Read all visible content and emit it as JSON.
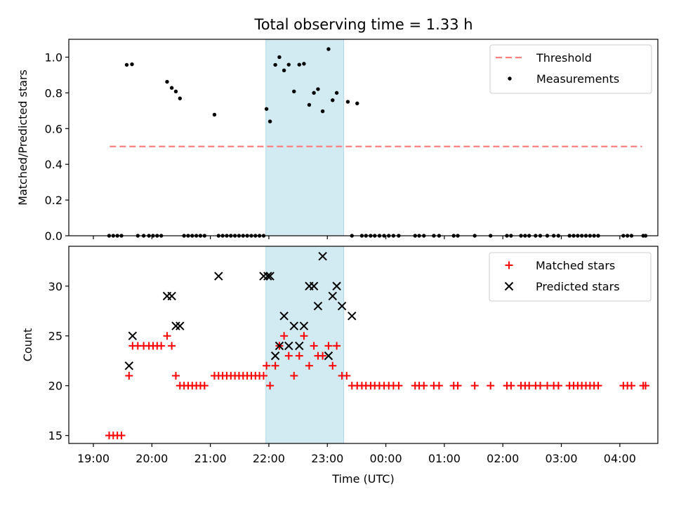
{
  "title": "Total observing time = 1.33 h",
  "colors": {
    "threshold": "#ff7f7f",
    "measurement": "#000000",
    "matched": "#ff0000",
    "predicted": "#000000",
    "shaded_region": "#add8e6"
  },
  "chart_data": [
    {
      "type": "scatter",
      "panel": "top",
      "title": "Total observing time = 1.33 h",
      "xlabel": "",
      "ylabel": "Matched/Predicted stars",
      "x_unit": "hours after 19:00 UTC",
      "xlim": [
        -0.42,
        9.65
      ],
      "ylim": [
        0.0,
        1.1
      ],
      "yticks": [
        0.0,
        0.2,
        0.4,
        0.6,
        0.8,
        1.0
      ],
      "ytick_labels": [
        "0.0",
        "0.2",
        "0.4",
        "0.6",
        "0.8",
        "1.0"
      ],
      "legend": {
        "position": "top-right",
        "entries": [
          "Threshold",
          "Measurements"
        ]
      },
      "shaded_region": {
        "x": [
          2.95,
          4.28
        ]
      },
      "threshold": {
        "name": "Threshold",
        "x": [
          0.28,
          9.38
        ],
        "y": 0.5,
        "style": "dashed"
      },
      "series": [
        {
          "name": "Measurements",
          "x": [
            0.27,
            0.34,
            0.41,
            0.48,
            0.57,
            0.66,
            0.76,
            0.86,
            0.95,
            1.02,
            1.09,
            1.16,
            1.26,
            1.34,
            1.41,
            1.48,
            1.55,
            1.62,
            1.69,
            1.76,
            1.83,
            1.9,
            2.07,
            2.14,
            2.21,
            2.28,
            2.35,
            2.42,
            2.49,
            2.56,
            2.63,
            2.7,
            2.77,
            2.84,
            2.91,
            2.96,
            3.02,
            3.11,
            3.18,
            3.26,
            3.34,
            3.43,
            3.52,
            3.6,
            3.69,
            3.77,
            3.84,
            3.92,
            4.02,
            4.09,
            4.16,
            4.35,
            4.42,
            4.51,
            4.59,
            4.66,
            4.74,
            4.81,
            4.89,
            4.97,
            5.05,
            5.13,
            5.22,
            5.5,
            5.57,
            5.65,
            5.82,
            5.91,
            6.16,
            6.23,
            6.52,
            6.79,
            7.07,
            7.14,
            7.31,
            7.38,
            7.45,
            7.56,
            7.64,
            7.76,
            7.87,
            7.95,
            8.14,
            8.21,
            8.28,
            8.35,
            8.42,
            8.49,
            8.56,
            8.63,
            9.06,
            9.13,
            9.2,
            9.4,
            9.44
          ],
          "y": [
            0.0,
            0.0,
            0.0,
            0.0,
            0.957,
            0.96,
            0.0,
            0.0,
            0.0,
            0.0,
            0.0,
            0.0,
            0.862,
            0.828,
            0.808,
            0.769,
            0.0,
            0.0,
            0.0,
            0.0,
            0.0,
            0.0,
            0.678,
            0.0,
            0.0,
            0.0,
            0.0,
            0.0,
            0.0,
            0.0,
            0.0,
            0.0,
            0.0,
            0.0,
            0.0,
            0.71,
            0.64,
            0.957,
            1.0,
            0.926,
            0.958,
            0.808,
            0.958,
            0.963,
            0.733,
            0.8,
            0.821,
            0.697,
            1.045,
            0.759,
            0.8,
            0.75,
            0.0,
            0.741,
            0.0,
            0.0,
            0.0,
            0.0,
            0.0,
            0.0,
            0.0,
            0.0,
            0.0,
            0.0,
            0.0,
            0.0,
            0.0,
            0.0,
            0.0,
            0.0,
            0.0,
            0.0,
            0.0,
            0.0,
            0.0,
            0.0,
            0.0,
            0.0,
            0.0,
            0.0,
            0.0,
            0.0,
            0.0,
            0.0,
            0.0,
            0.0,
            0.0,
            0.0,
            0.0,
            0.0,
            0.0,
            0.0,
            0.0,
            0.0,
            0.0
          ]
        }
      ]
    },
    {
      "type": "scatter",
      "panel": "bottom",
      "xlabel": "Time (UTC)",
      "ylabel": "Count",
      "x_unit": "hours after 19:00 UTC",
      "xlim": [
        -0.42,
        9.65
      ],
      "ylim": [
        14.2,
        34.0
      ],
      "xticks": [
        0,
        1,
        2,
        3,
        4,
        5,
        6,
        7,
        8,
        9
      ],
      "xtick_labels": [
        "19:00",
        "20:00",
        "21:00",
        "22:00",
        "23:00",
        "00:00",
        "01:00",
        "02:00",
        "03:00",
        "04:00"
      ],
      "yticks": [
        15,
        20,
        25,
        30
      ],
      "ytick_labels": [
        "15",
        "20",
        "25",
        "30"
      ],
      "legend": {
        "position": "top-right",
        "entries": [
          "Matched stars",
          "Predicted stars"
        ]
      },
      "shaded_region": {
        "x": [
          2.95,
          4.28
        ]
      },
      "series": [
        {
          "name": "Matched stars",
          "marker": "plus",
          "x": [
            0.27,
            0.34,
            0.41,
            0.48,
            0.61,
            0.67,
            0.76,
            0.86,
            0.95,
            1.02,
            1.09,
            1.16,
            1.26,
            1.34,
            1.41,
            1.48,
            1.55,
            1.62,
            1.69,
            1.76,
            1.83,
            1.9,
            2.07,
            2.14,
            2.21,
            2.28,
            2.35,
            2.42,
            2.49,
            2.56,
            2.63,
            2.7,
            2.77,
            2.84,
            2.91,
            2.96,
            3.02,
            3.11,
            3.18,
            3.26,
            3.34,
            3.43,
            3.52,
            3.6,
            3.69,
            3.77,
            3.84,
            3.92,
            4.02,
            4.09,
            4.16,
            4.25,
            4.33,
            4.42,
            4.51,
            4.59,
            4.66,
            4.74,
            4.81,
            4.89,
            4.97,
            5.05,
            5.13,
            5.22,
            5.5,
            5.57,
            5.65,
            5.82,
            5.91,
            6.16,
            6.23,
            6.52,
            6.79,
            7.07,
            7.14,
            7.31,
            7.38,
            7.45,
            7.56,
            7.64,
            7.76,
            7.87,
            7.95,
            8.14,
            8.21,
            8.28,
            8.35,
            8.42,
            8.49,
            8.56,
            8.63,
            9.06,
            9.13,
            9.2,
            9.4,
            9.44
          ],
          "y": [
            15,
            15,
            15,
            15,
            21,
            24,
            24,
            24,
            24,
            24,
            24,
            24,
            25,
            24,
            21,
            20,
            20,
            20,
            20,
            20,
            20,
            20,
            21,
            21,
            21,
            21,
            21,
            21,
            21,
            21,
            21,
            21,
            21,
            21,
            21,
            22,
            20,
            22,
            24,
            25,
            23,
            21,
            23,
            25,
            22,
            24,
            23,
            23,
            24,
            22,
            24,
            21,
            21,
            20,
            20,
            20,
            20,
            20,
            20,
            20,
            20,
            20,
            20,
            20,
            20,
            20,
            20,
            20,
            20,
            20,
            20,
            20,
            20,
            20,
            20,
            20,
            20,
            20,
            20,
            20,
            20,
            20,
            20,
            20,
            20,
            20,
            20,
            20,
            20,
            20,
            20,
            20,
            20,
            20,
            20,
            20
          ]
        },
        {
          "name": "Predicted stars",
          "marker": "x",
          "x": [
            0.61,
            0.67,
            1.26,
            1.34,
            1.41,
            1.48,
            2.14,
            2.91,
            2.98,
            3.02,
            3.11,
            3.18,
            3.26,
            3.34,
            3.43,
            3.52,
            3.6,
            3.69,
            3.77,
            3.84,
            3.92,
            4.02,
            4.09,
            4.16,
            4.25,
            4.42
          ],
          "y": [
            22,
            25,
            29,
            29,
            26,
            26,
            31,
            31,
            31,
            31,
            23,
            24,
            27,
            24,
            26,
            24,
            26,
            30,
            30,
            28,
            33,
            23,
            29,
            30,
            28,
            27
          ]
        }
      ]
    }
  ]
}
